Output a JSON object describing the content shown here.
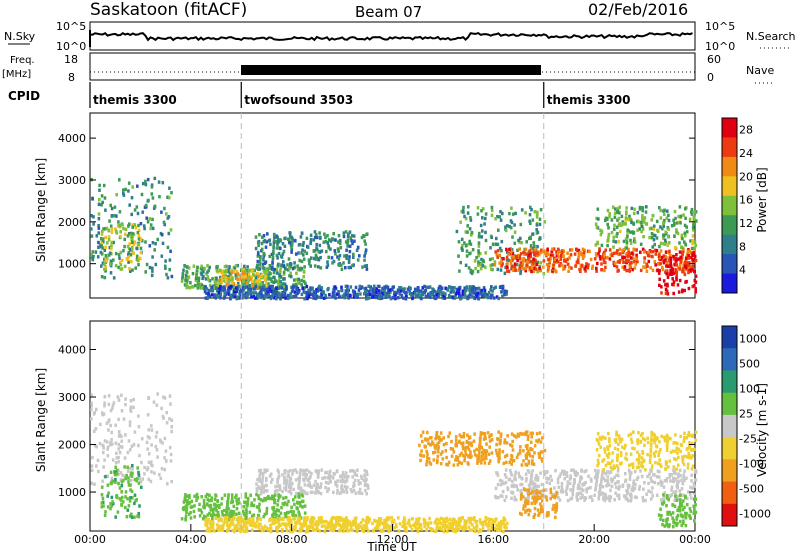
{
  "header": {
    "station": "Saskatoon (fitACF)",
    "beam": "Beam 07",
    "date": "02/Feb/2016"
  },
  "panels": {
    "nsky_label": "N.Sky",
    "nsky_ticks": [
      "10^5",
      "10^0"
    ],
    "nsearch_label": "N.Search",
    "freq_label": "Freq.",
    "freq_unit": "[MHz]",
    "freq_ticks": [
      "18",
      "8"
    ],
    "nave_label": "Nave",
    "nave_ticks": [
      "60",
      "0"
    ],
    "cpid_label": "CPID",
    "cpid_segments": [
      {
        "name": "themis 3300",
        "start_h": 0,
        "end_h": 6
      },
      {
        "name": "twofsound 3503",
        "start_h": 6,
        "end_h": 18
      },
      {
        "name": "themis 3300",
        "start_h": 18,
        "end_h": 24
      }
    ]
  },
  "chart_data": [
    {
      "type": "heatmap",
      "title": "Power",
      "ylabel": "Slant Range [km]",
      "ylim": [
        180,
        4600
      ],
      "xlim": [
        0,
        24
      ],
      "yticks": [
        "1000",
        "2000",
        "3000",
        "4000"
      ],
      "colorbar": {
        "label": "Power [dB]",
        "ticks": [
          "4",
          "8",
          "12",
          "16",
          "20",
          "24",
          "28"
        ],
        "range": [
          0,
          30
        ],
        "colors": [
          "#1a1adf",
          "#2a55b8",
          "#2f7f8a",
          "#3d9a55",
          "#7fc03a",
          "#f0c020",
          "#f08a15",
          "#ee3a10",
          "#e00010"
        ]
      },
      "echo_regions": [
        {
          "x0": 0.0,
          "x1": 3.2,
          "y0": 700,
          "y1": 3100,
          "value": 10
        },
        {
          "x0": 0.4,
          "x1": 2.0,
          "y0": 900,
          "y1": 2000,
          "value": 16
        },
        {
          "x0": 3.6,
          "x1": 8.5,
          "y0": 450,
          "y1": 1000,
          "value": 12
        },
        {
          "x0": 5.0,
          "x1": 7.0,
          "y0": 400,
          "y1": 900,
          "value": 18
        },
        {
          "x0": 6.5,
          "x1": 11.0,
          "y0": 900,
          "y1": 1800,
          "value": 9
        },
        {
          "x0": 4.5,
          "x1": 16.5,
          "y0": 200,
          "y1": 500,
          "value": 6
        },
        {
          "x0": 14.5,
          "x1": 18.0,
          "y0": 800,
          "y1": 2400,
          "value": 11
        },
        {
          "x0": 16.0,
          "x1": 24.0,
          "y0": 850,
          "y1": 1400,
          "value": 24
        },
        {
          "x0": 20.0,
          "x1": 24.0,
          "y0": 1400,
          "y1": 2400,
          "value": 13
        },
        {
          "x0": 22.5,
          "x1": 24.0,
          "y0": 300,
          "y1": 1300,
          "value": 29
        }
      ]
    },
    {
      "type": "heatmap",
      "title": "Velocity",
      "ylabel": "Slant Range [km]",
      "xlabel": "Time UT",
      "ylim": [
        180,
        4600
      ],
      "xlim": [
        0,
        24
      ],
      "yticks": [
        "1000",
        "2000",
        "3000",
        "4000"
      ],
      "xticks": [
        "00:00",
        "04:00",
        "08:00",
        "12:00",
        "16:00",
        "20:00",
        "00:00"
      ],
      "colorbar": {
        "label": "Velocity [m s-1]",
        "ticks": [
          "1000",
          "500",
          "100",
          "25",
          "-25",
          "-100",
          "-500",
          "-1000"
        ],
        "colors": [
          "#1b3fa8",
          "#2a6ab8",
          "#2a9a70",
          "#66c040",
          "#c8c8c8",
          "#f0d030",
          "#f0a020",
          "#f06010",
          "#e01010"
        ]
      },
      "echo_regions": [
        {
          "x0": 0.0,
          "x1": 3.2,
          "y0": 1200,
          "y1": 3100,
          "value": 0
        },
        {
          "x0": 0.4,
          "x1": 2.0,
          "y0": 500,
          "y1": 1600,
          "value": 90
        },
        {
          "x0": 3.6,
          "x1": 8.5,
          "y0": 450,
          "y1": 1000,
          "value": 80
        },
        {
          "x0": 6.5,
          "x1": 11.0,
          "y0": 1000,
          "y1": 1500,
          "value": 0
        },
        {
          "x0": 4.5,
          "x1": 16.5,
          "y0": 200,
          "y1": 500,
          "value": -60
        },
        {
          "x0": 13.0,
          "x1": 18.0,
          "y0": 1600,
          "y1": 2300,
          "value": -300
        },
        {
          "x0": 16.0,
          "x1": 24.0,
          "y0": 850,
          "y1": 1500,
          "value": 0
        },
        {
          "x0": 20.0,
          "x1": 24.0,
          "y0": 1500,
          "y1": 2300,
          "value": -80
        },
        {
          "x0": 17.0,
          "x1": 18.5,
          "y0": 500,
          "y1": 1100,
          "value": -150
        },
        {
          "x0": 22.5,
          "x1": 24.0,
          "y0": 300,
          "y1": 1000,
          "value": 60
        }
      ]
    }
  ]
}
